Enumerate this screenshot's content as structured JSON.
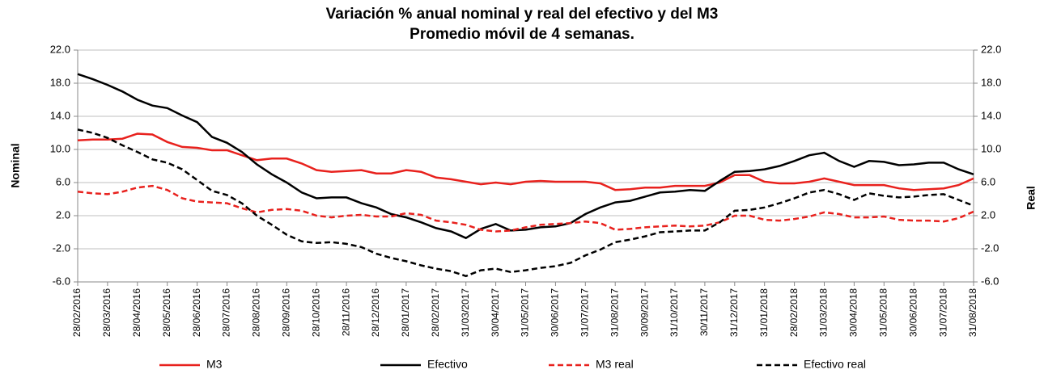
{
  "chart_data": {
    "type": "line",
    "title": "Variación % anual nominal y real del efectivo y del M3",
    "subtitle": "Promedio móvil de 4 semanas.",
    "y_label": "Nominal",
    "y2_label": "Real",
    "categories": [
      "28/02/2016",
      null,
      "28/03/2016",
      null,
      "28/04/2016",
      null,
      "28/05/2016",
      null,
      "28/06/2016",
      null,
      "28/07/2016",
      null,
      "28/08/2016",
      null,
      "28/09/2016",
      null,
      "28/10/2016",
      null,
      "28/11/2016",
      null,
      "28/12/2016",
      null,
      "28/01/2017",
      null,
      "28/02/2017",
      null,
      "31/03/2017",
      null,
      "30/04/2017",
      null,
      "31/05/2017",
      null,
      "30/06/2017",
      null,
      "31/07/2017",
      null,
      "31/08/2017",
      null,
      "30/09/2017",
      null,
      "31/10/2017",
      null,
      "30/11/2017",
      null,
      "31/12/2017",
      null,
      "31/01/2018",
      null,
      "28/02/2018",
      null,
      "31/03/2018",
      null,
      "30/04/2018",
      null,
      "31/05/2018",
      null,
      "30/06/2018",
      null,
      "31/07/2018",
      null,
      "31/08/2018"
    ],
    "series": [
      {
        "name": "M3",
        "color": "#e8211d",
        "dash": false,
        "values": [
          11.1,
          11.2,
          11.2,
          11.3,
          11.9,
          11.8,
          10.9,
          10.3,
          10.2,
          9.9,
          9.9,
          9.3,
          8.7,
          8.9,
          8.9,
          8.3,
          7.5,
          7.3,
          7.4,
          7.5,
          7.1,
          7.1,
          7.5,
          7.3,
          6.6,
          6.4,
          6.1,
          5.8,
          6.0,
          5.8,
          6.1,
          6.2,
          6.1,
          6.1,
          6.1,
          5.9,
          5.1,
          5.2,
          5.4,
          5.4,
          5.6,
          5.6,
          5.6,
          6.0,
          6.9,
          6.9,
          6.1,
          5.9,
          5.9,
          6.1,
          6.5,
          6.1,
          5.7,
          5.7,
          5.7,
          5.3,
          5.1,
          5.2,
          5.3,
          5.7,
          6.5
        ]
      },
      {
        "name": "Efectivo",
        "color": "#000000",
        "dash": false,
        "values": [
          19.1,
          18.5,
          17.8,
          17.0,
          16.0,
          15.3,
          15.0,
          14.1,
          13.3,
          11.5,
          10.8,
          9.7,
          8.2,
          7.0,
          6.0,
          4.8,
          4.1,
          4.2,
          4.2,
          3.5,
          3.0,
          2.2,
          1.8,
          1.2,
          0.5,
          0.1,
          -0.7,
          0.4,
          1.0,
          0.2,
          0.3,
          0.6,
          0.7,
          1.1,
          2.2,
          3.0,
          3.6,
          3.8,
          4.3,
          4.8,
          4.9,
          5.1,
          5.0,
          6.2,
          7.3,
          7.4,
          7.6,
          8.0,
          8.6,
          9.3,
          9.6,
          8.6,
          7.9,
          8.6,
          8.5,
          8.1,
          8.2,
          8.4,
          8.4,
          7.6,
          7.0
        ]
      },
      {
        "name": "M3 real",
        "color": "#e8211d",
        "dash": true,
        "axis": "y2",
        "values": [
          4.9,
          4.7,
          4.6,
          4.9,
          5.4,
          5.6,
          5.1,
          4.1,
          3.7,
          3.6,
          3.5,
          2.9,
          2.4,
          2.7,
          2.8,
          2.6,
          2.0,
          1.8,
          2.0,
          2.1,
          1.9,
          1.9,
          2.3,
          2.1,
          1.4,
          1.2,
          0.9,
          0.3,
          0.1,
          0.2,
          0.6,
          0.9,
          1.0,
          1.1,
          1.3,
          1.1,
          0.3,
          0.4,
          0.6,
          0.7,
          0.8,
          0.7,
          0.8,
          1.2,
          2.0,
          2.0,
          1.5,
          1.4,
          1.6,
          1.9,
          2.4,
          2.2,
          1.8,
          1.8,
          1.9,
          1.5,
          1.4,
          1.4,
          1.3,
          1.7,
          2.5
        ]
      },
      {
        "name": "Efectivo real",
        "color": "#000000",
        "dash": true,
        "axis": "y2",
        "values": [
          12.4,
          12.0,
          11.4,
          10.5,
          9.7,
          8.8,
          8.4,
          7.6,
          6.3,
          5.0,
          4.5,
          3.5,
          2.0,
          0.9,
          -0.3,
          -1.1,
          -1.3,
          -1.2,
          -1.4,
          -1.8,
          -2.6,
          -3.1,
          -3.5,
          -4.0,
          -4.4,
          -4.7,
          -5.3,
          -4.6,
          -4.4,
          -4.8,
          -4.6,
          -4.3,
          -4.1,
          -3.7,
          -2.8,
          -2.1,
          -1.2,
          -0.9,
          -0.5,
          0.0,
          0.1,
          0.2,
          0.2,
          1.2,
          2.6,
          2.7,
          3.0,
          3.5,
          4.1,
          4.8,
          5.1,
          4.6,
          3.9,
          4.7,
          4.4,
          4.2,
          4.3,
          4.5,
          4.6,
          3.9,
          3.2
        ]
      }
    ],
    "ylim": [
      -6,
      22
    ],
    "yticks": [
      {
        "value": -6,
        "label": "-6.0"
      },
      {
        "value": -2,
        "label": "-2.0"
      },
      {
        "value": 2,
        "label": "2.0"
      },
      {
        "value": 6,
        "label": "6.0"
      },
      {
        "value": 10,
        "label": "10.0"
      },
      {
        "value": 14,
        "label": "14.0"
      },
      {
        "value": 18,
        "label": "18.0"
      },
      {
        "value": 22,
        "label": "22.0"
      }
    ],
    "y2lim": [
      -6,
      22
    ],
    "y2ticks": [
      {
        "value": -6,
        "label": "-6.0"
      },
      {
        "value": -2,
        "label": "-2.0"
      },
      {
        "value": 2,
        "label": "2.0"
      },
      {
        "value": 6,
        "label": "6.0"
      },
      {
        "value": 10,
        "label": "10.0"
      },
      {
        "value": 14,
        "label": "14.0"
      },
      {
        "value": 18,
        "label": "18.0"
      },
      {
        "value": 22,
        "label": "22.0"
      }
    ],
    "grid": true,
    "legend": "bottom"
  }
}
